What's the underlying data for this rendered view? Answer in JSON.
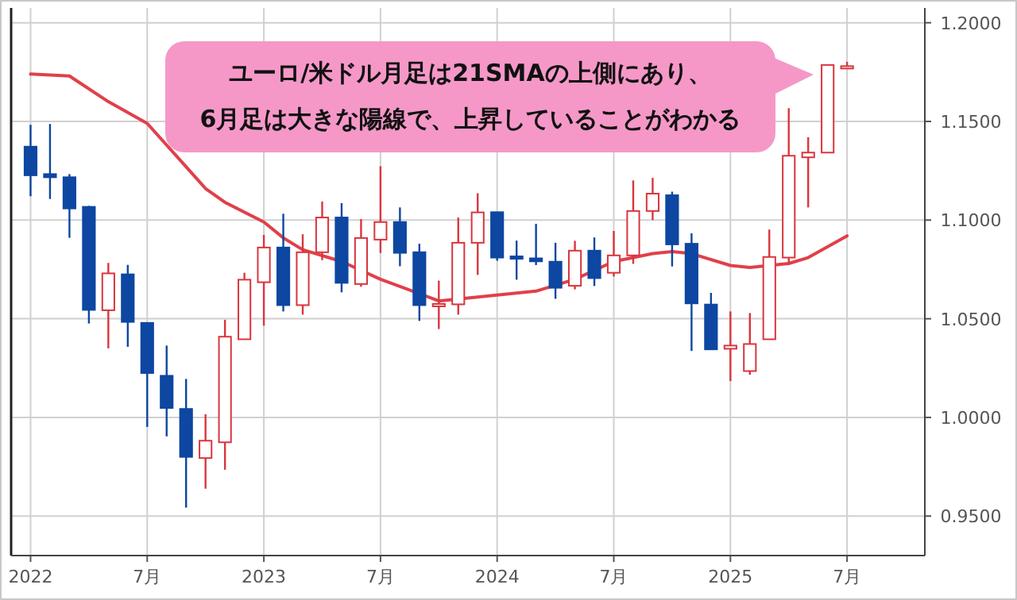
{
  "chart_data": {
    "type": "candlestick",
    "x": [
      "2022-01",
      "2022-02",
      "2022-03",
      "2022-04",
      "2022-05",
      "2022-06",
      "2022-07",
      "2022-08",
      "2022-09",
      "2022-10",
      "2022-11",
      "2022-12",
      "2023-01",
      "2023-02",
      "2023-03",
      "2023-04",
      "2023-05",
      "2023-06",
      "2023-07",
      "2023-08",
      "2023-09",
      "2023-10",
      "2023-11",
      "2023-12",
      "2024-01",
      "2024-02",
      "2024-03",
      "2024-04",
      "2024-05",
      "2024-06",
      "2024-07",
      "2024-08",
      "2024-09",
      "2024-10",
      "2024-11",
      "2024-12",
      "2025-01",
      "2025-02",
      "2025-03",
      "2025-04",
      "2025-05",
      "2025-06",
      "2025-07"
    ],
    "ohlc": [
      [
        1.1372,
        1.1483,
        1.1121,
        1.1227
      ],
      [
        1.1233,
        1.1487,
        1.1107,
        1.1217
      ],
      [
        1.1217,
        1.1233,
        1.091,
        1.1059
      ],
      [
        1.1067,
        1.1072,
        1.0476,
        1.0545
      ],
      [
        1.0543,
        1.0783,
        1.035,
        1.073
      ],
      [
        1.0725,
        1.0773,
        1.0358,
        1.0484
      ],
      [
        1.0479,
        1.0479,
        0.9952,
        1.0225
      ],
      [
        1.0211,
        1.0364,
        0.9904,
        1.0048
      ],
      [
        1.0043,
        1.0195,
        0.9543,
        0.98
      ],
      [
        0.9794,
        1.0016,
        0.9639,
        0.9882
      ],
      [
        0.9874,
        1.0495,
        0.9735,
        1.0409
      ],
      [
        1.0396,
        1.0733,
        1.0396,
        1.0698
      ],
      [
        1.0685,
        1.0925,
        1.0465,
        1.0861
      ],
      [
        1.0861,
        1.1032,
        1.0537,
        1.0569
      ],
      [
        1.0569,
        1.0928,
        1.0521,
        1.0837
      ],
      [
        1.0837,
        1.1094,
        1.0797,
        1.1013
      ],
      [
        1.1013,
        1.1086,
        1.0634,
        1.0682
      ],
      [
        1.0676,
        1.1005,
        1.0662,
        1.0909
      ],
      [
        1.0901,
        1.1273,
        1.0833,
        1.099
      ],
      [
        1.099,
        1.1064,
        1.0766,
        1.0834
      ],
      [
        1.0837,
        1.088,
        1.0489,
        1.0569
      ],
      [
        1.0569,
        1.0693,
        1.0448,
        1.0575
      ],
      [
        1.0573,
        1.1013,
        1.0521,
        1.0885
      ],
      [
        1.0885,
        1.1136,
        1.0722,
        1.1039
      ],
      [
        1.104,
        1.104,
        1.0794,
        1.081
      ],
      [
        1.0816,
        1.0896,
        1.0698,
        1.0804
      ],
      [
        1.0806,
        1.0981,
        1.0772,
        1.0791
      ],
      [
        1.0789,
        1.0885,
        1.0601,
        1.0657
      ],
      [
        1.0667,
        1.0895,
        1.0649,
        1.0845
      ],
      [
        1.0845,
        1.0912,
        1.0666,
        1.0706
      ],
      [
        1.0733,
        1.0945,
        1.0714,
        1.0821
      ],
      [
        1.0821,
        1.1201,
        1.0778,
        1.1046
      ],
      [
        1.1046,
        1.1214,
        1.1,
        1.1134
      ],
      [
        1.1126,
        1.1144,
        1.0765,
        1.0877
      ],
      [
        1.088,
        1.0933,
        1.0337,
        1.0578
      ],
      [
        1.0572,
        1.0631,
        1.0345,
        1.0345
      ],
      [
        1.0348,
        1.0537,
        1.0184,
        1.0364
      ],
      [
        1.0235,
        1.0529,
        1.0216,
        1.0372
      ],
      [
        1.0396,
        1.0952,
        1.0396,
        1.0813
      ],
      [
        1.081,
        1.1567,
        1.0778,
        1.1326
      ],
      [
        1.1318,
        1.142,
        1.1064,
        1.1342
      ],
      [
        1.1342,
        1.1786,
        1.1342,
        1.1786
      ],
      [
        1.1778,
        1.1802,
        1.1765,
        1.178
      ]
    ],
    "colors": [
      "#0d47a1",
      "#0d47a1",
      "#0d47a1",
      "#0d47a1",
      "#d9363e",
      "#0d47a1",
      "#0d47a1",
      "#0d47a1",
      "#0d47a1",
      "#d9363e",
      "#d9363e",
      "#d9363e",
      "#d9363e",
      "#0d47a1",
      "#d9363e",
      "#d9363e",
      "#0d47a1",
      "#d9363e",
      "#d9363e",
      "#0d47a1",
      "#0d47a1",
      "#d9363e",
      "#d9363e",
      "#d9363e",
      "#0d47a1",
      "#0d47a1",
      "#0d47a1",
      "#0d47a1",
      "#d9363e",
      "#0d47a1",
      "#d9363e",
      "#d9363e",
      "#d9363e",
      "#0d47a1",
      "#0d47a1",
      "#0d47a1",
      "#d9363e",
      "#d9363e",
      "#d9363e",
      "#d9363e",
      "#d9363e",
      "#d9363e",
      "#d9363e"
    ],
    "series": [
      {
        "type": "line",
        "color": "#e0404a",
        "x": [
          "2022-01",
          "2022-03",
          "2022-05",
          "2022-07",
          "2022-09",
          "2022-10",
          "2022-11",
          "2023-01",
          "2023-02",
          "2023-03",
          "2023-05",
          "2023-07",
          "2023-10",
          "2023-11",
          "2024-01",
          "2024-03",
          "2024-05",
          "2024-07",
          "2024-09",
          "2024-10",
          "2024-11",
          "2025-01",
          "2025-02",
          "2025-03",
          "2025-04",
          "2025-05",
          "2025-07"
        ],
        "values": [
          1.174,
          1.173,
          1.16,
          1.149,
          1.127,
          1.116,
          1.109,
          1.099,
          1.091,
          1.085,
          1.079,
          1.07,
          1.059,
          1.06,
          1.062,
          1.064,
          1.07,
          1.079,
          1.083,
          1.084,
          1.083,
          1.077,
          1.076,
          1.077,
          1.078,
          1.081,
          1.092
        ]
      }
    ],
    "xlim": [
      "2021-12",
      "2025-11"
    ],
    "xticks": [
      {
        "value": "2022-01",
        "label": "2022"
      },
      {
        "value": "2022-07",
        "label": "7月"
      },
      {
        "value": "2023-01",
        "label": "2023"
      },
      {
        "value": "2023-07",
        "label": "7月"
      },
      {
        "value": "2024-01",
        "label": "2024"
      },
      {
        "value": "2024-07",
        "label": "7月"
      },
      {
        "value": "2025-01",
        "label": "2025"
      },
      {
        "value": "2025-07",
        "label": "7月"
      }
    ],
    "ylim": [
      0.93,
      1.2075
    ],
    "yticks": [
      {
        "value": 0.95,
        "label": "0.9500"
      },
      {
        "value": 1.0,
        "label": "1.0000"
      },
      {
        "value": 1.05,
        "label": "1.0500"
      },
      {
        "value": 1.1,
        "label": "1.1000"
      },
      {
        "value": 1.15,
        "label": "1.1500"
      },
      {
        "value": 1.2,
        "label": "1.2000"
      }
    ],
    "grid": true,
    "annotations": [
      "ユーロ/米ドル月足は21SMAの上側にあり、\n6月足は大きな陽線で、上昇していることがわかる"
    ]
  }
}
